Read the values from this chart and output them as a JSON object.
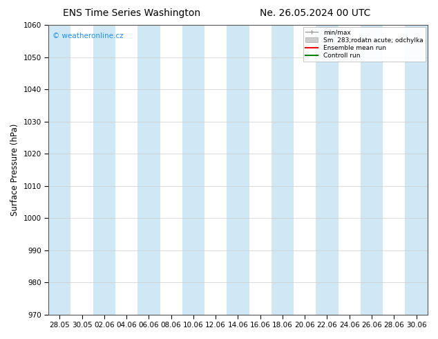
{
  "title_left": "ENS Time Series Washington",
  "title_right": "Ne. 26.05.2024 00 UTC",
  "ylabel": "Surface Pressure (hPa)",
  "ylim": [
    970,
    1060
  ],
  "yticks": [
    970,
    980,
    990,
    1000,
    1010,
    1020,
    1030,
    1040,
    1050,
    1060
  ],
  "xtick_labels": [
    "28.05",
    "30.05",
    "02.06",
    "04.06",
    "06.06",
    "08.06",
    "10.06",
    "12.06",
    "14.06",
    "16.06",
    "18.06",
    "20.06",
    "22.06",
    "24.06",
    "26.06",
    "28.06",
    "30.06"
  ],
  "watermark": "© weatheronline.cz",
  "watermark_color": "#1e90ff",
  "plot_bg_color": "#ffffff",
  "shaded_columns_color": "#d0e8f5",
  "legend_labels": [
    "min/max",
    "Sm  283;rodatn acute; odchylka",
    "Ensemble mean run",
    "Controll run"
  ],
  "legend_line_colors": [
    "#aaaaaa",
    "#cccccc",
    "#ff0000",
    "#00aa00"
  ],
  "title_fontsize": 10,
  "tick_fontsize": 7.5,
  "ylabel_fontsize": 8.5,
  "shaded_indices": [
    0,
    2,
    4,
    6,
    8,
    10,
    12,
    14,
    16
  ]
}
